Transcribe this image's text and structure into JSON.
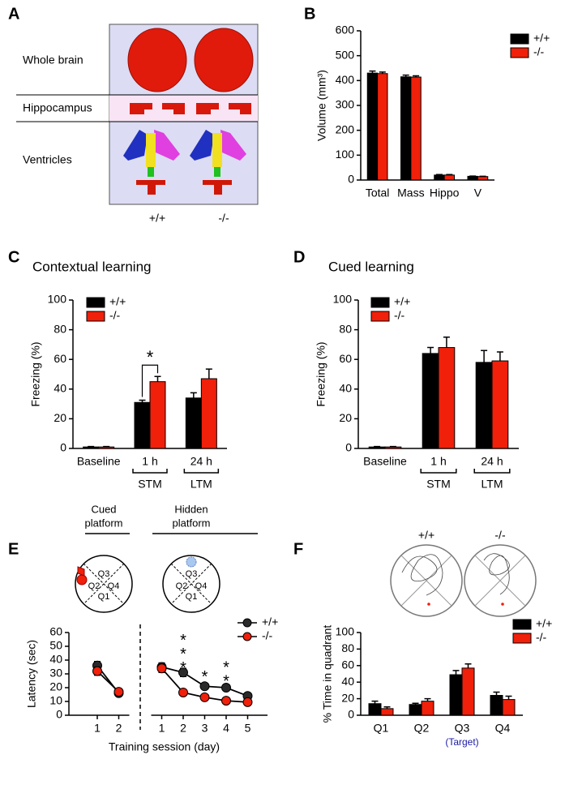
{
  "panel_a": {
    "panel": "A",
    "rows": [
      "Whole brain",
      "Hippocampus",
      "Ventricles"
    ],
    "columns": [
      "+/+",
      "-/-"
    ]
  },
  "chart_data": [
    {
      "panel": "B",
      "type": "bar",
      "y_label": "Volume (mm³)",
      "categories": [
        "Total",
        "Mass",
        "Hippo",
        "V"
      ],
      "series": [
        {
          "name": "+/+",
          "color": "#000000",
          "values": [
            430,
            415,
            20,
            15
          ],
          "errors": [
            8,
            7,
            2,
            1
          ]
        },
        {
          "name": "-/-",
          "color": "#f0200a",
          "values": [
            428,
            414,
            20,
            14
          ],
          "errors": [
            6,
            5,
            2,
            1
          ]
        }
      ],
      "ylim": [
        0,
        600
      ],
      "yticks": [
        0,
        100,
        200,
        300,
        400,
        500,
        600
      ]
    },
    {
      "panel": "C",
      "type": "bar",
      "title": "Contextual learning",
      "y_label": "Freezing (%)",
      "categories": [
        "Baseline",
        "1 h",
        "24 h"
      ],
      "category_groups": [
        null,
        "STM",
        "LTM"
      ],
      "significance": [
        null,
        "*",
        null
      ],
      "series": [
        {
          "name": "+/+",
          "color": "#000000",
          "values": [
            1,
            31,
            34
          ],
          "errors": [
            0.3,
            1.5,
            3.5
          ]
        },
        {
          "name": "-/-",
          "color": "#f0200a",
          "values": [
            1,
            45,
            47
          ],
          "errors": [
            0.3,
            3.5,
            6.5
          ]
        }
      ],
      "ylim": [
        0,
        100
      ],
      "yticks": [
        0,
        20,
        40,
        60,
        80,
        100
      ]
    },
    {
      "panel": "D",
      "type": "bar",
      "title": "Cued learning",
      "y_label": "Freezing (%)",
      "categories": [
        "Baseline",
        "1 h",
        "24 h"
      ],
      "category_groups": [
        null,
        "STM",
        "LTM"
      ],
      "series": [
        {
          "name": "+/+",
          "color": "#000000",
          "values": [
            1,
            64,
            58
          ],
          "errors": [
            0.3,
            4,
            8
          ]
        },
        {
          "name": "-/-",
          "color": "#f0200a",
          "values": [
            1,
            68,
            59
          ],
          "errors": [
            0.3,
            7,
            6
          ]
        }
      ],
      "ylim": [
        0,
        100
      ],
      "yticks": [
        0,
        20,
        40,
        60,
        80,
        100
      ]
    },
    {
      "panel": "E",
      "type": "line",
      "y_label": "Latency (sec)",
      "x_label": "Training session (day)",
      "diagrams": [
        {
          "title": [
            "Cued",
            "platform"
          ],
          "quadrants": [
            "Q3",
            "Q2",
            "Q4",
            "Q1"
          ]
        },
        {
          "title": [
            "Hidden",
            "platform"
          ],
          "quadrants": [
            "Q3",
            "Q2",
            "Q4",
            "Q1"
          ]
        }
      ],
      "categories": [
        "1",
        "2",
        null,
        "1",
        "2",
        "3",
        "4",
        "5"
      ],
      "significance": [
        null,
        null,
        null,
        null,
        "***",
        "*",
        "**",
        null
      ],
      "series": [
        {
          "name": "+/+",
          "color": "#2a2a2a",
          "values": [
            36,
            16,
            null,
            35,
            31,
            21,
            20,
            14
          ],
          "errors": [
            3,
            2,
            null,
            3,
            3,
            2,
            2,
            2
          ]
        },
        {
          "name": "-/-",
          "color": "#f0200a",
          "values": [
            32,
            17,
            null,
            34,
            16.5,
            13,
            10.5,
            9.5
          ],
          "errors": [
            3,
            2,
            null,
            3,
            1.5,
            1,
            1,
            1
          ]
        }
      ],
      "ylim": [
        0,
        60
      ],
      "yticks": [
        0,
        10,
        20,
        30,
        40,
        50,
        60
      ]
    },
    {
      "panel": "F",
      "type": "bar",
      "y_label": "% Time in quadrant",
      "track_labels": [
        "+/+",
        "-/-"
      ],
      "categories": [
        "Q1",
        "Q2",
        "Q3",
        "Q4"
      ],
      "category_notes": [
        null,
        null,
        "(Target)",
        null
      ],
      "note_color": "#1a1aa6",
      "series": [
        {
          "name": "+/+",
          "color": "#000000",
          "values": [
            14,
            13,
            49,
            24
          ],
          "errors": [
            3,
            1.5,
            5,
            4
          ]
        },
        {
          "name": "-/-",
          "color": "#f0200a",
          "values": [
            8,
            17,
            57,
            19
          ],
          "errors": [
            2,
            3,
            5,
            4
          ]
        }
      ],
      "ylim": [
        0,
        100
      ],
      "yticks": [
        0,
        20,
        40,
        60,
        80,
        100
      ]
    }
  ]
}
